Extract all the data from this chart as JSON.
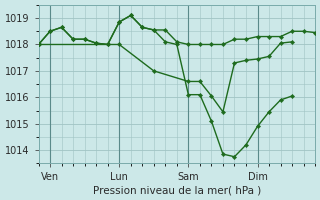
{
  "bg_color": "#cce8e8",
  "grid_color": "#a0c4c4",
  "line_color": "#1e6b1e",
  "marker_color": "#1e6b1e",
  "xlabel": "Pression niveau de la mer( hPa )",
  "ylim": [
    1013.5,
    1019.5
  ],
  "yticks": [
    1014,
    1015,
    1016,
    1017,
    1018,
    1019
  ],
  "xlim": [
    0,
    24
  ],
  "day_labels": [
    "Ven",
    "Lun",
    "Sam",
    "Dim"
  ],
  "day_positions": [
    1,
    7,
    13,
    19
  ],
  "series": [
    {
      "x": [
        0,
        1,
        2,
        3,
        4,
        5,
        6,
        7,
        8,
        9,
        10,
        11,
        12,
        13,
        14,
        15,
        16,
        17,
        18,
        19,
        20,
        21,
        22,
        23,
        24
      ],
      "y": [
        1018.0,
        1018.5,
        1018.65,
        1018.2,
        1018.2,
        1018.05,
        1018.0,
        1018.85,
        1019.1,
        1018.65,
        1018.55,
        1018.55,
        1018.1,
        1018.0,
        1018.0,
        1018.0,
        1018.0,
        1018.2,
        1018.2,
        1018.3,
        1018.3,
        1018.3,
        1018.5,
        1018.5,
        1018.45
      ]
    },
    {
      "x": [
        0,
        1,
        2,
        3,
        4,
        5,
        6,
        7,
        8,
        9,
        10,
        11,
        12,
        13,
        14,
        15,
        16,
        17,
        18,
        19,
        20,
        21,
        22
      ],
      "y": [
        1018.0,
        1018.5,
        1018.65,
        1018.2,
        1018.2,
        1018.05,
        1018.0,
        1018.85,
        1019.1,
        1018.65,
        1018.55,
        1018.1,
        1018.0,
        1016.1,
        1016.1,
        1015.1,
        1013.85,
        1013.75,
        1014.2,
        1014.9,
        1015.45,
        1015.9,
        1016.05
      ]
    },
    {
      "x": [
        0,
        7,
        10,
        13,
        14,
        15,
        16,
        17,
        18,
        19,
        20,
        21,
        22
      ],
      "y": [
        1018.0,
        1018.0,
        1017.0,
        1016.6,
        1016.6,
        1016.05,
        1015.45,
        1017.3,
        1017.4,
        1017.45,
        1017.55,
        1018.05,
        1018.1
      ]
    }
  ]
}
